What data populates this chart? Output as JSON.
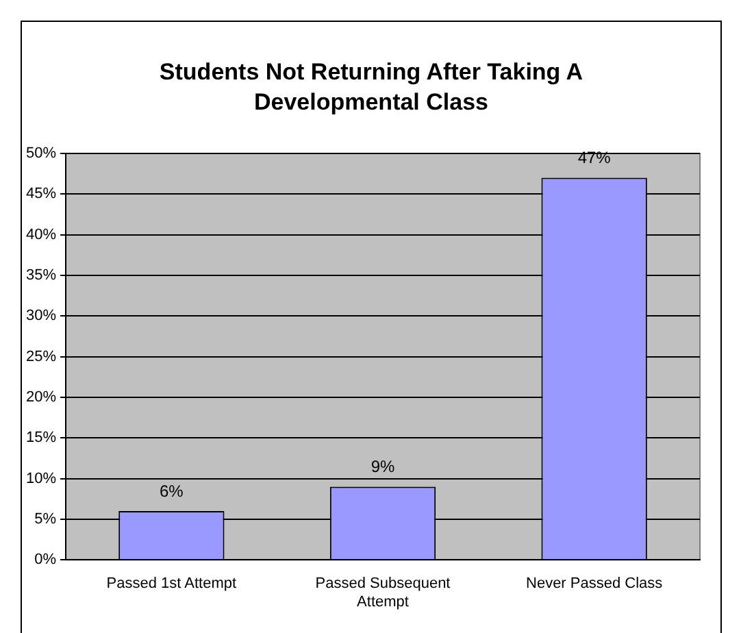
{
  "chart_data": {
    "type": "bar",
    "title": "Students Not Returning After Taking A Developmental Class",
    "categories": [
      "Passed 1st Attempt",
      "Passed Subsequent Attempt",
      "Never Passed Class"
    ],
    "values": [
      6,
      9,
      47
    ],
    "color": "#9999ff",
    "value_labels": [
      "6%",
      "9%",
      "47%"
    ],
    "ylim": [
      0,
      50
    ],
    "yticks": [
      {
        "value": 0,
        "label": "0%"
      },
      {
        "value": 5,
        "label": "5%"
      },
      {
        "value": 10,
        "label": "10%"
      },
      {
        "value": 15,
        "label": "15%"
      },
      {
        "value": 20,
        "label": "20%"
      },
      {
        "value": 25,
        "label": "25%"
      },
      {
        "value": 30,
        "label": "30%"
      },
      {
        "value": 35,
        "label": "35%"
      },
      {
        "value": 40,
        "label": "40%"
      },
      {
        "value": 45,
        "label": "45%"
      },
      {
        "value": 50,
        "label": "50%"
      }
    ],
    "grid": "y",
    "legend": false
  }
}
